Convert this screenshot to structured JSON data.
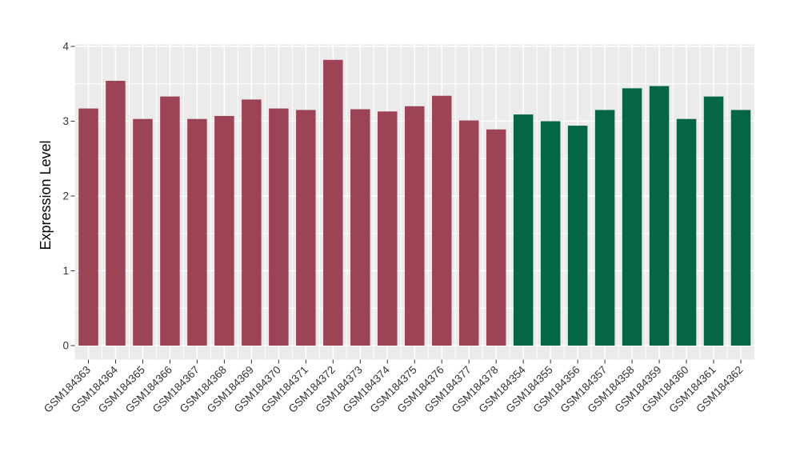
{
  "figure": {
    "background_color": "#ffffff"
  },
  "chart_data": {
    "type": "bar",
    "title": "",
    "xlabel": "",
    "ylabel": "Expression Level",
    "ylim": [
      0,
      4
    ],
    "yticks": [
      0,
      1,
      2,
      3,
      4
    ],
    "yminor": [
      0.5,
      1.5,
      2.5,
      3.5
    ],
    "grid": "on",
    "legend_position": "none",
    "panel_background": "#ebebeb",
    "gridline_color": "#ffffff",
    "axis_text_color": "#333333",
    "axis_title_color": "#000000",
    "tick_mark_color": "#333333",
    "group_colors": {
      "group1": "#9c4355",
      "group2": "#046645"
    },
    "categories": [
      "GSM184363",
      "GSM184364",
      "GSM184365",
      "GSM184366",
      "GSM184367",
      "GSM184368",
      "GSM184369",
      "GSM184370",
      "GSM184371",
      "GSM184372",
      "GSM184373",
      "GSM184374",
      "GSM184375",
      "GSM184376",
      "GSM184377",
      "GSM184378",
      "GSM184354",
      "GSM184355",
      "GSM184356",
      "GSM184357",
      "GSM184358",
      "GSM184359",
      "GSM184360",
      "GSM184361",
      "GSM184362"
    ],
    "values": [
      3.17,
      3.54,
      3.03,
      3.33,
      3.03,
      3.07,
      3.29,
      3.17,
      3.15,
      3.82,
      3.16,
      3.13,
      3.2,
      3.34,
      3.01,
      2.89,
      3.09,
      3.0,
      2.94,
      3.15,
      3.44,
      3.47,
      3.03,
      3.33,
      3.15
    ],
    "bar_groups": [
      "group1",
      "group1",
      "group1",
      "group1",
      "group1",
      "group1",
      "group1",
      "group1",
      "group1",
      "group1",
      "group1",
      "group1",
      "group1",
      "group1",
      "group1",
      "group1",
      "group2",
      "group2",
      "group2",
      "group2",
      "group2",
      "group2",
      "group2",
      "group2",
      "group2"
    ]
  }
}
